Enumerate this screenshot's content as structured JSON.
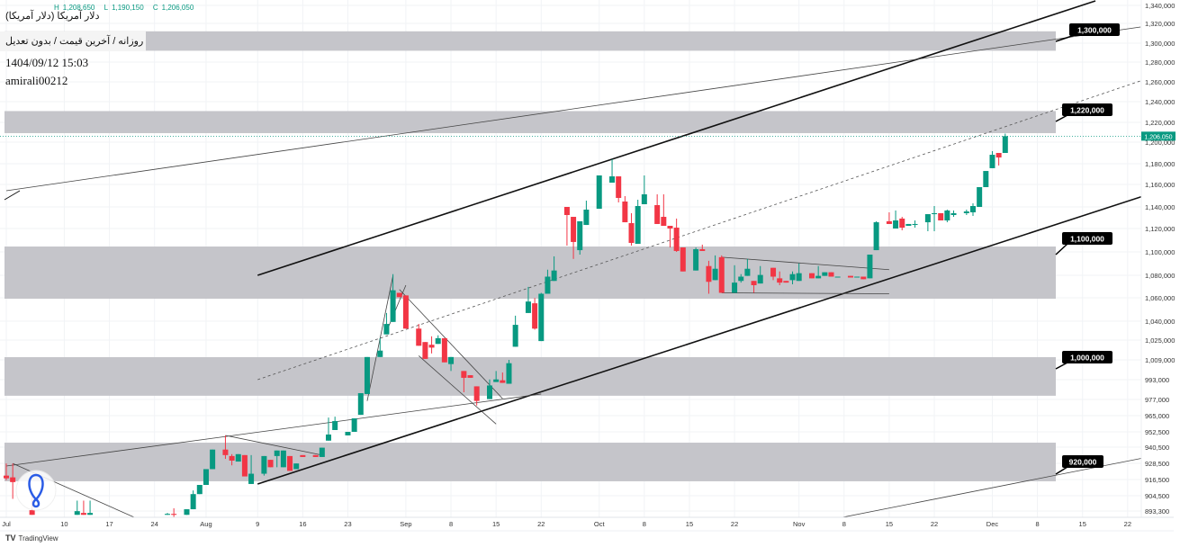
{
  "header": {
    "ohlc": {
      "h_label": "H",
      "h": "1,208,650",
      "l_label": "L",
      "l": "1,190,150",
      "c_label": "C",
      "c": "1,206,050"
    },
    "title": "دلار آمریکا (دلار آمریکا)",
    "subtitle": "روزانه / آخرین قیمت / بدون تعدیل",
    "timestamp": "1404/09/12 15:03",
    "author": "amirali00212"
  },
  "footer": {
    "brand": "TradingView",
    "logo_icon": "tradingview-logo-icon"
  },
  "chart_data": {
    "type": "candlestick",
    "scale": "log",
    "grid": true,
    "colors": {
      "up": "#089981",
      "down": "#f23645",
      "zone": "#c2c2c7",
      "last_price": "#089981",
      "callout": "#000000"
    },
    "y_ticks": [
      {
        "v": 1340000,
        "label": "1,340,000"
      },
      {
        "v": 1320000,
        "label": "1,320,000"
      },
      {
        "v": 1300000,
        "label": "1,300,000"
      },
      {
        "v": 1280000,
        "label": "1,280,000"
      },
      {
        "v": 1260000,
        "label": "1,260,000"
      },
      {
        "v": 1240000,
        "label": "1,240,000"
      },
      {
        "v": 1220000,
        "label": "1,220,000"
      },
      {
        "v": 1200000,
        "label": "1,200,000"
      },
      {
        "v": 1180000,
        "label": "1,180,000"
      },
      {
        "v": 1160000,
        "label": "1,160,000"
      },
      {
        "v": 1140000,
        "label": "1,140,000"
      },
      {
        "v": 1120000,
        "label": "1,120,000"
      },
      {
        "v": 1100000,
        "label": "1,100,000"
      },
      {
        "v": 1080000,
        "label": "1,080,000"
      },
      {
        "v": 1060000,
        "label": "1,060,000"
      },
      {
        "v": 1040000,
        "label": "1,040,000"
      },
      {
        "v": 1025000,
        "label": "1,025,000"
      },
      {
        "v": 1009000,
        "label": "1,009,000"
      },
      {
        "v": 993000,
        "label": "993,000"
      },
      {
        "v": 977000,
        "label": "977,000"
      },
      {
        "v": 965000,
        "label": "965,000"
      },
      {
        "v": 952500,
        "label": "952,500"
      },
      {
        "v": 940500,
        "label": "940,500"
      },
      {
        "v": 928500,
        "label": "928,500"
      },
      {
        "v": 916500,
        "label": "916,500"
      },
      {
        "v": 904500,
        "label": "904,500"
      },
      {
        "v": 893300,
        "label": "893,300"
      }
    ],
    "x_ticks": [
      {
        "date": "07-01",
        "label": "Jul"
      },
      {
        "date": "07-10",
        "label": "10"
      },
      {
        "date": "07-17",
        "label": "17"
      },
      {
        "date": "07-24",
        "label": "24"
      },
      {
        "date": "08-01",
        "label": "Aug"
      },
      {
        "date": "08-09",
        "label": "9"
      },
      {
        "date": "08-16",
        "label": "16"
      },
      {
        "date": "08-23",
        "label": "23"
      },
      {
        "date": "09-01",
        "label": "Sep"
      },
      {
        "date": "09-08",
        "label": "8"
      },
      {
        "date": "09-15",
        "label": "15"
      },
      {
        "date": "09-22",
        "label": "22"
      },
      {
        "date": "10-01",
        "label": "Oct"
      },
      {
        "date": "10-08",
        "label": "8"
      },
      {
        "date": "10-15",
        "label": "15"
      },
      {
        "date": "10-22",
        "label": "22"
      },
      {
        "date": "11-01",
        "label": "Nov"
      },
      {
        "date": "11-08",
        "label": "8"
      },
      {
        "date": "11-15",
        "label": "15"
      },
      {
        "date": "11-22",
        "label": "22"
      },
      {
        "date": "12-01",
        "label": "Dec"
      },
      {
        "date": "12-08",
        "label": "8"
      },
      {
        "date": "12-15",
        "label": "15"
      },
      {
        "date": "12-22",
        "label": "22"
      }
    ],
    "last_price": {
      "value": 1206050,
      "label": "1,206,050"
    },
    "candles": [
      [
        "07-01",
        919400,
        928400,
        916000,
        917400
      ],
      [
        "07-02",
        918100,
        928400,
        902200,
        914600
      ],
      [
        "07-05",
        893900,
        905700,
        890500,
        890500
      ],
      [
        "07-12",
        890500,
        900900,
        890500,
        893200
      ],
      [
        "07-13",
        891900,
        900900,
        890500,
        890500
      ],
      [
        "07-14",
        890500,
        900900,
        890500,
        891900
      ],
      [
        "07-26",
        890500,
        891900,
        890500,
        891200
      ],
      [
        "07-27",
        891200,
        895300,
        888400,
        890500
      ],
      [
        "07-29",
        890500,
        894600,
        890500,
        894600
      ],
      [
        "07-30",
        894600,
        908400,
        894600,
        905700
      ],
      [
        "07-31",
        905700,
        912500,
        905700,
        912500
      ],
      [
        "08-01",
        912500,
        924200,
        912500,
        924200
      ],
      [
        "08-02",
        924200,
        938700,
        924200,
        938700
      ],
      [
        "08-04",
        938700,
        949700,
        931800,
        934600
      ],
      [
        "08-05",
        933900,
        935300,
        927000,
        930500
      ],
      [
        "08-06",
        929800,
        935300,
        929800,
        935300
      ],
      [
        "08-07",
        934600,
        934600,
        918800,
        918800
      ],
      [
        "08-08",
        913200,
        934600,
        913200,
        920800
      ],
      [
        "08-10",
        920800,
        933900,
        919400,
        933900
      ],
      [
        "08-11",
        931100,
        931100,
        925600,
        925600
      ],
      [
        "08-12",
        933900,
        938000,
        925600,
        938000
      ],
      [
        "08-13",
        925600,
        938000,
        925600,
        938000
      ],
      [
        "08-14",
        933900,
        933900,
        922900,
        922900
      ],
      [
        "08-15",
        924200,
        928400,
        924200,
        928400
      ],
      [
        "08-16",
        934600,
        934600,
        933200,
        933200
      ],
      [
        "08-18",
        934600,
        934600,
        933200,
        933200
      ],
      [
        "08-19",
        933200,
        940100,
        933200,
        940100
      ],
      [
        "08-20",
        945600,
        963500,
        945600,
        950400
      ],
      [
        "08-21",
        953900,
        964200,
        953900,
        960800
      ],
      [
        "08-23",
        949700,
        952500,
        949700,
        952500
      ],
      [
        "08-24",
        952500,
        962900,
        952500,
        962900
      ],
      [
        "08-25",
        965600,
        982100,
        965600,
        982100
      ],
      [
        "08-26",
        981400,
        1011300,
        981400,
        1011300
      ],
      [
        "08-28",
        1011300,
        1026500,
        1011300,
        1016500
      ],
      [
        "08-29",
        1029500,
        1047000,
        1029500,
        1037800
      ],
      [
        "08-30",
        1039400,
        1081000,
        1039400,
        1066700
      ],
      [
        "08-31",
        1064400,
        1064400,
        1060600,
        1060600
      ],
      [
        "09-01",
        1062100,
        1062100,
        1034100,
        1034100
      ],
      [
        "09-03",
        1034100,
        1037800,
        1020400,
        1020400
      ],
      [
        "09-04",
        1023400,
        1023400,
        1009800,
        1009800
      ],
      [
        "09-05",
        1021200,
        1028000,
        1014200,
        1018900
      ],
      [
        "09-06",
        1021900,
        1028800,
        1021900,
        1026500
      ],
      [
        "09-07",
        1026500,
        1026500,
        1007000,
        1007000
      ],
      [
        "09-08",
        1005600,
        1011300,
        1000000,
        1011300
      ],
      [
        "09-10",
        1000000,
        1000000,
        982800,
        994500
      ],
      [
        "09-11",
        996600,
        996600,
        994500,
        994500
      ],
      [
        "09-12",
        987600,
        987600,
        972500,
        975900
      ],
      [
        "09-14",
        977300,
        993200,
        977300,
        988300
      ],
      [
        "09-15",
        991100,
        1000000,
        991100,
        993200
      ],
      [
        "09-16",
        992500,
        998800,
        990400,
        990400
      ],
      [
        "09-17",
        989700,
        1009000,
        989700,
        1006300
      ],
      [
        "09-18",
        1019600,
        1044700,
        1019600,
        1037100
      ],
      [
        "09-20",
        1047000,
        1069700,
        1047000,
        1056800
      ],
      [
        "09-21",
        1055300,
        1059800,
        1033300,
        1034100
      ],
      [
        "09-22",
        1024200,
        1064400,
        1024200,
        1063600
      ],
      [
        "09-23",
        1063600,
        1084800,
        1063600,
        1078800
      ],
      [
        "09-24",
        1075000,
        1096200,
        1075000,
        1084100
      ],
      [
        "09-26",
        1140000,
        1140000,
        1105400,
        1132500
      ],
      [
        "09-27",
        1130800,
        1130800,
        1094000,
        1108500
      ],
      [
        "09-28",
        1101500,
        1125800,
        1097700,
        1126700
      ],
      [
        "09-29",
        1123300,
        1145600,
        1123300,
        1137500
      ],
      [
        "10-01",
        1138300,
        1168700,
        1138300,
        1168700
      ],
      [
        "10-03",
        1161700,
        1184200,
        1161700,
        1167800
      ],
      [
        "10-04",
        1167800,
        1167800,
        1144000,
        1148000
      ],
      [
        "10-05",
        1144800,
        1149600,
        1125800,
        1125800
      ],
      [
        "10-06",
        1125000,
        1134200,
        1105400,
        1107700
      ],
      [
        "10-07",
        1106900,
        1146400,
        1106900,
        1140800
      ],
      [
        "10-08",
        1142400,
        1168700,
        1142400,
        1151200
      ],
      [
        "10-10",
        1141600,
        1151200,
        1124200,
        1124200
      ],
      [
        "10-11",
        1130800,
        1151200,
        1122500,
        1122500
      ],
      [
        "10-12",
        1122500,
        1122500,
        1103800,
        1120000
      ],
      [
        "10-13",
        1120800,
        1129200,
        1100000,
        1100800
      ],
      [
        "10-14",
        1103800,
        1103800,
        1083300,
        1083300
      ],
      [
        "10-16",
        1084100,
        1103800,
        1084100,
        1102300
      ],
      [
        "10-17",
        1102300,
        1106200,
        1100800,
        1100800
      ],
      [
        "10-18",
        1087900,
        1092400,
        1063600,
        1074200
      ],
      [
        "10-19",
        1075700,
        1097000,
        1075700,
        1085600
      ],
      [
        "10-20",
        1095500,
        1097000,
        1064400,
        1064400
      ],
      [
        "10-22",
        1064400,
        1088600,
        1064400,
        1073500
      ],
      [
        "10-23",
        1075000,
        1081000,
        1073500,
        1078800
      ],
      [
        "10-24",
        1079500,
        1094000,
        1079500,
        1085600
      ],
      [
        "10-25",
        1075000,
        1075000,
        1064400,
        1071200
      ],
      [
        "10-26",
        1072700,
        1087900,
        1072700,
        1080300
      ],
      [
        "10-28",
        1086400,
        1086400,
        1075700,
        1078800
      ],
      [
        "10-29",
        1077300,
        1083300,
        1071200,
        1073500
      ],
      [
        "10-30",
        1075000,
        1075000,
        1073500,
        1073500
      ],
      [
        "10-31",
        1075700,
        1083300,
        1072000,
        1081000
      ],
      [
        "11-01",
        1075000,
        1090200,
        1075000,
        1081800
      ],
      [
        "11-03",
        1081800,
        1081800,
        1077300,
        1077300
      ],
      [
        "11-04",
        1077300,
        1087900,
        1077300,
        1079500
      ],
      [
        "11-05",
        1079500,
        1082600,
        1079500,
        1082600
      ],
      [
        "11-06",
        1082600,
        1082600,
        1078800,
        1078800
      ],
      [
        "11-07",
        1078000,
        1078800,
        1078000,
        1078800
      ],
      [
        "11-09",
        1079500,
        1079500,
        1078000,
        1078000
      ],
      [
        "11-10",
        1078000,
        1078800,
        1078000,
        1078800
      ],
      [
        "11-11",
        1078800,
        1078800,
        1076500,
        1076500
      ],
      [
        "11-12",
        1077300,
        1097700,
        1077300,
        1097700
      ],
      [
        "11-13",
        1101500,
        1126700,
        1101500,
        1125800
      ],
      [
        "11-15",
        1126700,
        1135000,
        1124200,
        1124200
      ],
      [
        "11-16",
        1120000,
        1136700,
        1120000,
        1127500
      ],
      [
        "11-17",
        1129200,
        1130800,
        1118500,
        1120800
      ],
      [
        "11-18",
        1122500,
        1124200,
        1122500,
        1124200
      ],
      [
        "11-19",
        1123300,
        1127500,
        1120800,
        1124200
      ],
      [
        "11-21",
        1125800,
        1133300,
        1117700,
        1133300
      ],
      [
        "11-22",
        1133300,
        1140800,
        1117700,
        1134200
      ],
      [
        "11-23",
        1134200,
        1134200,
        1127500,
        1127500
      ],
      [
        "11-24",
        1127500,
        1137500,
        1125800,
        1136700
      ],
      [
        "11-25",
        1132500,
        1136700,
        1130800,
        1134200
      ],
      [
        "11-27",
        1134200,
        1137500,
        1132500,
        1135800
      ],
      [
        "11-28",
        1135000,
        1143200,
        1131700,
        1140800
      ],
      [
        "11-29",
        1140000,
        1157600,
        1140000,
        1157600
      ],
      [
        "11-30",
        1157600,
        1173000,
        1157600,
        1173000
      ],
      [
        "12-01",
        1175700,
        1191700,
        1175700,
        1188300
      ],
      [
        "12-02",
        1190000,
        1190000,
        1178300,
        1185800
      ],
      [
        "12-03",
        1190000,
        1208650,
        1190150,
        1206050
      ]
    ],
    "zones": [
      {
        "top": 1312000,
        "bottom": 1292000,
        "label": "1,300,000"
      },
      {
        "top": 1230900,
        "bottom": 1209100,
        "label": "1,220,000"
      },
      {
        "top": 1104600,
        "bottom": 1059200,
        "label": "1,100,000"
      },
      {
        "top": 1011200,
        "bottom": 980000,
        "label": "1,000,000"
      },
      {
        "top": 944000,
        "bottom": 915200,
        "label": "920,000"
      }
    ],
    "trendlines": [
      {
        "name": "upper-channel",
        "style": "thick",
        "from": [
          "08-09",
          1080000
        ],
        "to": [
          "12-17",
          1345000
        ]
      },
      {
        "name": "lower-channel",
        "style": "thick",
        "from": [
          "08-09",
          913200
        ],
        "to": [
          "12-27",
          1154400
        ]
      },
      {
        "name": "long-thin-upper",
        "style": "thin",
        "from": [
          "07-01",
          1154400
        ],
        "to": [
          "12-24",
          1316400
        ]
      },
      {
        "name": "mid-dashed",
        "style": "dashed",
        "from": [
          "08-09",
          993000
        ],
        "to": [
          "12-24",
          1261000
        ]
      },
      {
        "name": "lower-thin",
        "style": "thin",
        "from": [
          "07-01",
          926500
        ],
        "to": [
          "09-22",
          981400
        ]
      },
      {
        "name": "triangle-aug-top",
        "style": "thin",
        "from": [
          "08-04",
          949700
        ],
        "to": [
          "08-19",
          934600
        ]
      },
      {
        "name": "july-descending",
        "style": "thin",
        "from": [
          "07-02",
          928400
        ],
        "to": [
          "07-21",
          888400
        ]
      },
      {
        "name": "flag-pole-1",
        "style": "thin",
        "from": [
          "08-26",
          975900
        ],
        "to": [
          "08-30",
          1079500
        ]
      },
      {
        "name": "flag-pole-2",
        "style": "thin",
        "from": [
          "08-29",
          1031800
        ],
        "to": [
          "09-01",
          1071200
        ]
      },
      {
        "name": "flag-channel-top",
        "style": "thin",
        "from": [
          "08-31",
          1067400
        ],
        "to": [
          "09-16",
          977700
        ]
      },
      {
        "name": "flag-channel-bottom",
        "style": "thin",
        "from": [
          "09-03",
          1012300
        ],
        "to": [
          "09-15",
          958500
        ]
      },
      {
        "name": "triangle-oct-top",
        "style": "thin",
        "from": [
          "10-20",
          1095500
        ],
        "to": [
          "11-15",
          1084800
        ]
      },
      {
        "name": "triangle-oct-bottom",
        "style": "thin",
        "from": [
          "10-20",
          1064400
        ],
        "to": [
          "11-15",
          1063600
        ]
      },
      {
        "name": "bottom-right-thin",
        "style": "thin",
        "from": [
          "11-07",
          888000
        ],
        "to": [
          "12-27",
          934900
        ]
      }
    ]
  }
}
